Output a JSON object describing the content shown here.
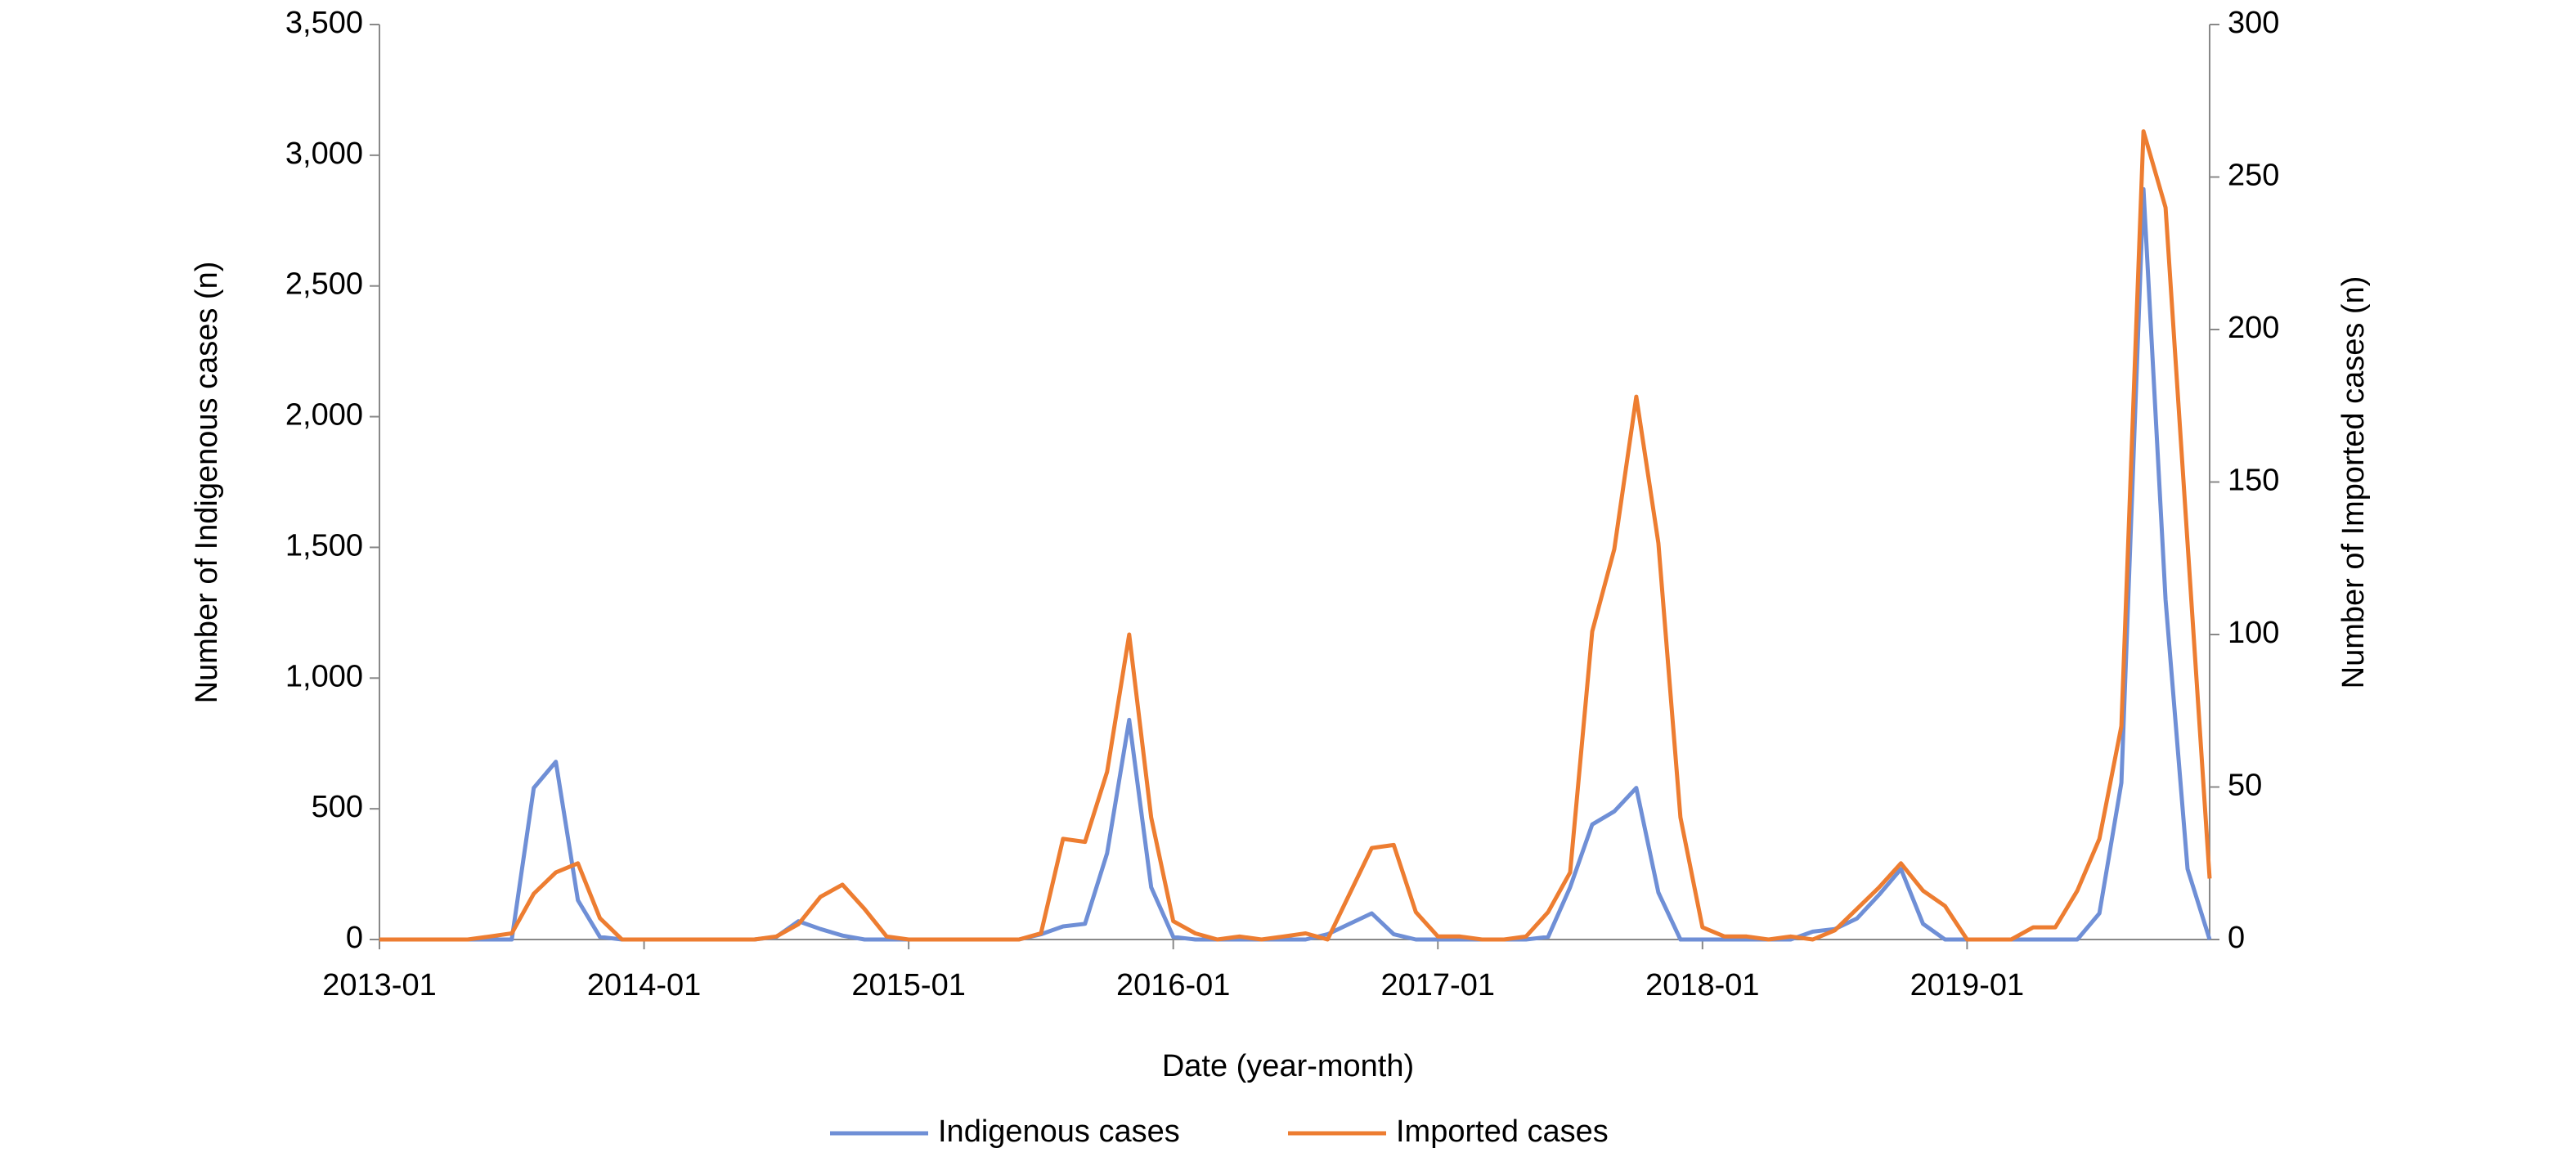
{
  "chart_data": {
    "type": "line",
    "xlabel": "Date (year-month)",
    "ylabel": "Number of Indigenous cases (n)",
    "y2label": "Number of Imported cases (n)",
    "categories": [
      "2013-01",
      null,
      null,
      null,
      null,
      null,
      null,
      null,
      null,
      null,
      null,
      null,
      "2014-01",
      null,
      null,
      null,
      null,
      null,
      null,
      null,
      null,
      null,
      null,
      null,
      "2015-01",
      null,
      null,
      null,
      null,
      null,
      null,
      null,
      null,
      null,
      null,
      null,
      "2016-01",
      null,
      null,
      null,
      null,
      null,
      null,
      null,
      null,
      null,
      null,
      null,
      "2017-01",
      null,
      null,
      null,
      null,
      null,
      null,
      null,
      null,
      null,
      null,
      null,
      "2018-01",
      null,
      null,
      null,
      null,
      null,
      null,
      null,
      null,
      null,
      null,
      null,
      "2019-01",
      null,
      null,
      null,
      null,
      null,
      null,
      null,
      null,
      null,
      null,
      null
    ],
    "ylim": [
      0,
      3500
    ],
    "yticks": [
      0,
      500,
      {
        "value": 1000,
        "label": "1,000"
      },
      {
        "value": 1500,
        "label": "1,500"
      },
      {
        "value": 2000,
        "label": "2,000"
      },
      {
        "value": 2500,
        "label": "2,500"
      },
      {
        "value": 3000,
        "label": "3,000"
      },
      {
        "value": 3500,
        "label": "3,500"
      }
    ],
    "y2lim": [
      0,
      300
    ],
    "y2ticks": [
      0,
      50,
      100,
      150,
      200,
      250,
      300
    ],
    "legend": "bottom",
    "series": [
      {
        "name": "Indigenous cases",
        "color": "#6f8fd6",
        "axis": "y",
        "values": [
          0,
          0,
          0,
          0,
          0,
          0,
          0,
          580,
          680,
          150,
          10,
          0,
          0,
          0,
          0,
          0,
          0,
          0,
          10,
          70,
          40,
          15,
          0,
          0,
          0,
          0,
          0,
          0,
          0,
          0,
          20,
          50,
          60,
          330,
          840,
          200,
          10,
          0,
          0,
          0,
          0,
          0,
          0,
          20,
          60,
          100,
          20,
          0,
          0,
          0,
          0,
          0,
          0,
          10,
          200,
          440,
          490,
          580,
          180,
          0,
          0,
          0,
          0,
          0,
          0,
          30,
          40,
          80,
          170,
          270,
          60,
          0,
          0,
          0,
          0,
          0,
          0,
          0,
          100,
          600,
          2870,
          1300,
          270,
          0
        ]
      },
      {
        "name": "Imported cases",
        "color": "#ed7d31",
        "axis": "y2",
        "values": [
          0,
          0,
          0,
          0,
          0,
          1,
          2,
          15,
          22,
          25,
          7,
          0,
          0,
          0,
          0,
          0,
          0,
          0,
          1,
          5,
          14,
          18,
          10,
          1,
          0,
          0,
          0,
          0,
          0,
          0,
          2,
          33,
          32,
          55,
          100,
          40,
          6,
          2,
          0,
          1,
          0,
          1,
          2,
          0,
          15,
          30,
          31,
          9,
          1,
          1,
          0,
          0,
          1,
          9,
          22,
          101,
          128,
          178,
          130,
          40,
          4,
          1,
          1,
          0,
          1,
          0,
          3,
          10,
          17,
          25,
          16,
          11,
          0,
          0,
          0,
          4,
          4,
          16,
          33,
          70,
          265,
          240,
          130,
          20
        ]
      }
    ]
  }
}
